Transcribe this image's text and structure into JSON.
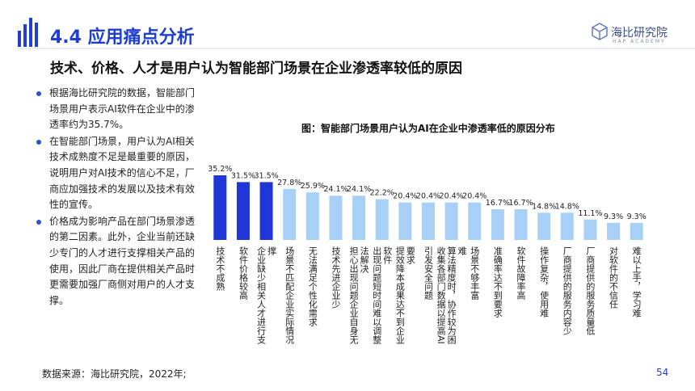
{
  "header": {
    "title": "4.4 应用痛点分析",
    "logo": "海比研究院",
    "logo_sub": "HAP ACADEMY",
    "subtitle": "技术、价格、人才是用户认为智能部门场景在企业渗透率较低的原因"
  },
  "bullets": [
    "根据海比研究院的数据，智能部门场景用户表示AI软件在企业中的渗透率约为35.7%。",
    "在智能部门场景，用户认为AI相关技术成熟度不足是最重要的原因，说明用户对AI技术的信心不足，厂商应加强技术的发展以及技术有效性的宣传。",
    "价格成为影响产品在部门场景渗透的第二因素。此外，企业当前还缺少专门的人才进行支撑相关产品的使用，因此厂商在提供相关产品时更需要加强厂商侧对用户的人才支撑。"
  ],
  "footer": {
    "source": "数据来源：海比研究院，2022年;",
    "page": "54"
  },
  "chart_data": {
    "type": "bar",
    "title": "图：智能部门场景用户认为AI在企业中渗透率低的原因分布",
    "categories": [
      "技术不成熟",
      "软件价格较高",
      "企业缺少相关人才进行支撑",
      "场景不匹配企业实际情况",
      "无法满足个性化需求",
      "技术先进企业少",
      "担心出现问题企业自身无法解决",
      "出现问题短时间难以调整软件",
      "提效降本成果达不到企业要求",
      "引发安全问题",
      "收集各部门数据以提高AI算法精度时，协作较为困难",
      "场景不够丰富",
      "准确率达不到要求",
      "软件故障率高",
      "操作复杂，使用难",
      "厂商提供的服务内容少",
      "厂商提供的服务质量低",
      "对软件的不信任",
      "难以上手，学习难"
    ],
    "values": [
      35.2,
      31.5,
      31.5,
      27.8,
      25.9,
      24.1,
      24.1,
      22.2,
      20.4,
      20.4,
      20.4,
      20.4,
      16.7,
      16.7,
      14.8,
      14.8,
      11.1,
      9.3,
      9.3
    ],
    "value_labels": [
      "35.2%",
      "31.5%",
      "31.5%",
      "27.8%",
      "25.9%",
      "24.1%",
      "24.1%",
      "22.2%",
      "20.4%",
      "20.4%",
      "20.4%",
      "20.4%",
      "16.7%",
      "16.7%",
      "14.8%",
      "14.8%",
      "11.1%",
      "9.3%",
      "9.3%"
    ],
    "colors": [
      "#1f35d6",
      "#1f35d6",
      "#1f35d6",
      "#a8d0f7",
      "#a8d0f7",
      "#a8d0f7",
      "#a8d0f7",
      "#a8d0f7",
      "#a8d0f7",
      "#a8d0f7",
      "#a8d0f7",
      "#a8d0f7",
      "#a8d0f7",
      "#a8d0f7",
      "#a8d0f7",
      "#a8d0f7",
      "#a8d0f7",
      "#a8d0f7",
      "#a8d0f7"
    ]
  }
}
